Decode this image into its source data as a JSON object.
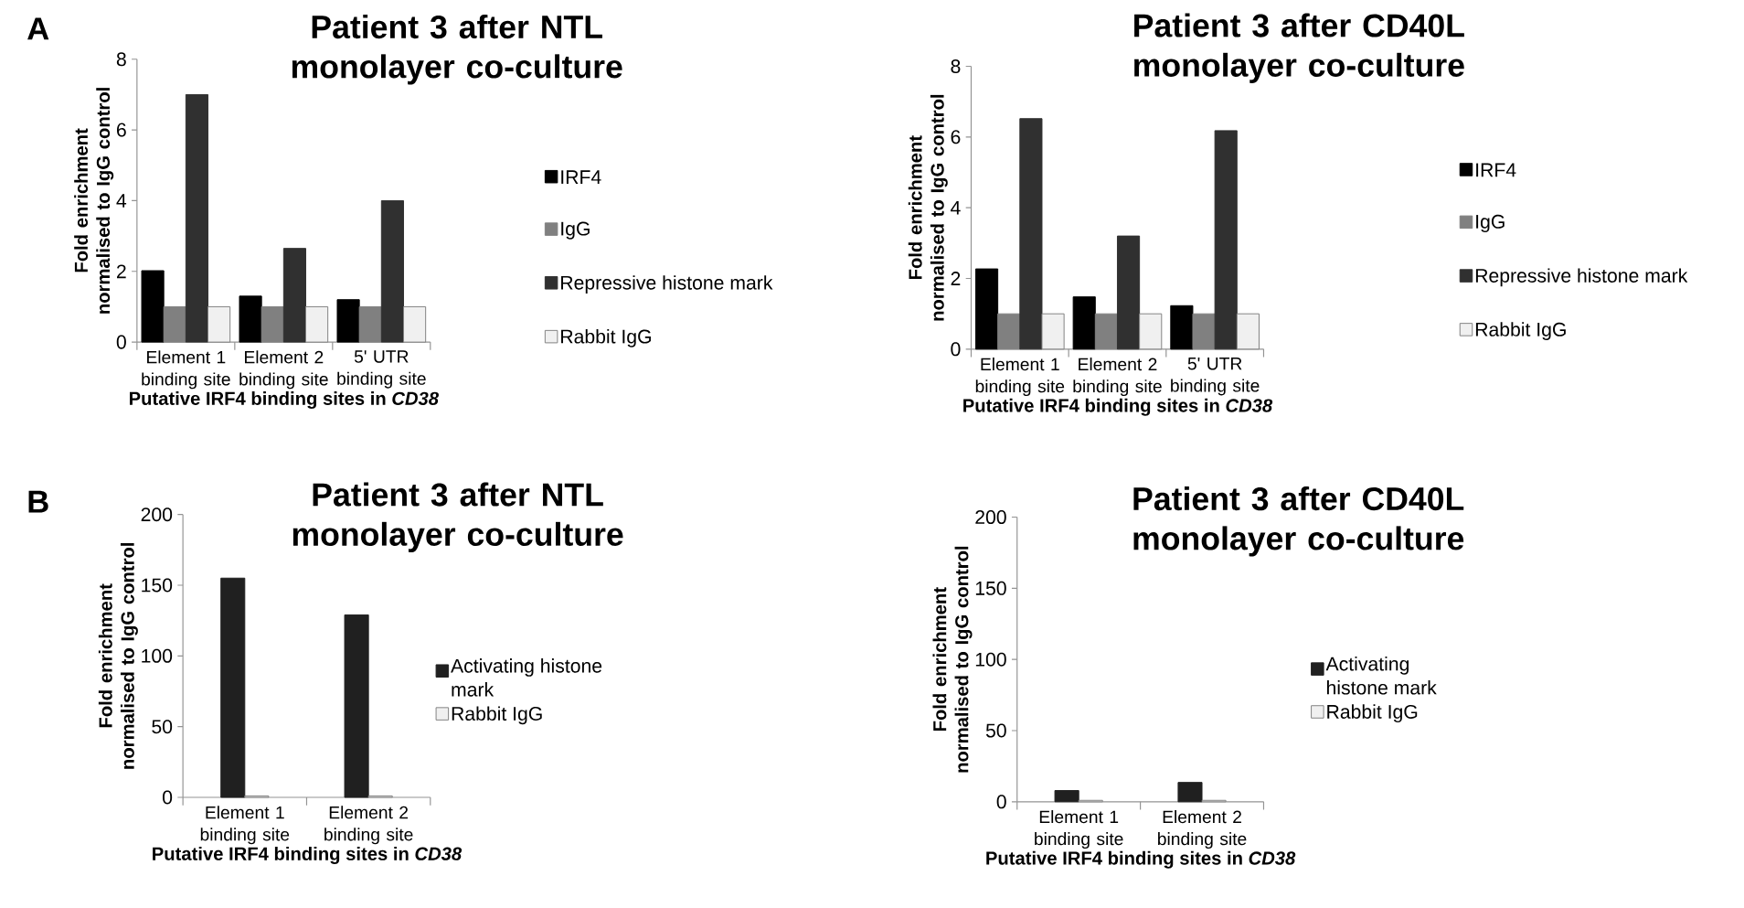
{
  "chart_data": [
    {
      "type": "bar",
      "title": "Patient 3 after NTL monolayer co-culture",
      "xlabel": "Putative IRF4 binding sites in *CD38*",
      "ylabel": "Fold enrichment normalised to IgG control",
      "categories": [
        "Element 1 binding site",
        "Element 2 binding site",
        "5' UTR binding site"
      ],
      "ylim": [
        0,
        8
      ],
      "yticks": [
        0,
        2,
        4,
        6,
        8
      ],
      "legend": "right",
      "annotations": [
        "A"
      ],
      "series": [
        {
          "name": "IRF4",
          "color": "#000000",
          "values": [
            2.02,
            1.3,
            1.2
          ]
        },
        {
          "name": "IgG",
          "color": "#808080",
          "values": [
            1,
            1,
            1
          ]
        },
        {
          "name": "Repressive histone mark",
          "color": "#303030",
          "values": [
            7.0,
            2.65,
            4.0
          ]
        },
        {
          "name": "Rabbit IgG",
          "color": "#f0f0f0",
          "values": [
            1,
            1,
            1
          ]
        }
      ]
    },
    {
      "type": "bar",
      "title": "Patient 3 after CD40L monolayer co-culture",
      "xlabel": "Putative IRF4 binding sites in *CD38*",
      "ylabel": "Fold enrichment normalised to IgG control",
      "categories": [
        "Element 1 binding site",
        "Element 2 binding site",
        "5' UTR binding site"
      ],
      "ylim": [
        0,
        8
      ],
      "yticks": [
        0,
        2,
        4,
        6,
        8
      ],
      "legend": "right",
      "series": [
        {
          "name": "IRF4",
          "color": "#000000",
          "values": [
            2.27,
            1.48,
            1.23
          ]
        },
        {
          "name": "IgG",
          "color": "#808080",
          "values": [
            1,
            1,
            1
          ]
        },
        {
          "name": "Repressive histone mark",
          "color": "#303030",
          "values": [
            6.52,
            3.2,
            6.18
          ]
        },
        {
          "name": "Rabbit IgG",
          "color": "#f0f0f0",
          "values": [
            1,
            1,
            1
          ]
        }
      ]
    },
    {
      "type": "bar",
      "title": "Patient 3 after NTL monolayer co-culture",
      "xlabel": "Putative IRF4 binding sites in *CD38*",
      "ylabel": "Fold enrichment normalised to IgG control",
      "categories": [
        "Element 1 binding site",
        "Element 2 binding site"
      ],
      "ylim": [
        0,
        200
      ],
      "yticks": [
        0,
        50,
        100,
        150,
        200
      ],
      "legend": "right",
      "annotations": [
        "B"
      ],
      "series": [
        {
          "name": "Activating histone mark",
          "color": "#202020",
          "values": [
            155,
            129
          ]
        },
        {
          "name": "Rabbit IgG",
          "color": "#f0f0f0",
          "values": [
            1,
            1
          ]
        }
      ]
    },
    {
      "type": "bar",
      "title": "Patient 3 after CD40L monolayer co-culture",
      "xlabel": "Putative IRF4 binding sites in *CD38*",
      "ylabel": "Fold enrichment normalised to IgG control",
      "categories": [
        "Element 1 binding site",
        "Element 2 binding site"
      ],
      "ylim": [
        0,
        200
      ],
      "yticks": [
        0,
        50,
        100,
        150,
        200
      ],
      "legend": "right",
      "series": [
        {
          "name": "Activating histone mark",
          "color": "#202020",
          "values": [
            7.9,
            13.6
          ]
        },
        {
          "name": "Rabbit IgG",
          "color": "#f0f0f0",
          "values": [
            1,
            1
          ]
        }
      ]
    }
  ]
}
